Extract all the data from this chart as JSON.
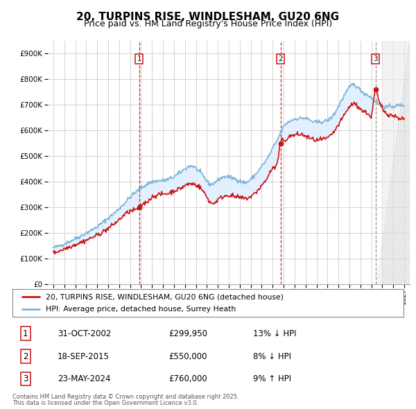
{
  "title": "20, TURPINS RISE, WINDLESHAM, GU20 6NG",
  "subtitle": "Price paid vs. HM Land Registry's House Price Index (HPI)",
  "title_fontsize": 11,
  "subtitle_fontsize": 9,
  "ylim": [
    0,
    950000
  ],
  "yticks": [
    0,
    100000,
    200000,
    300000,
    400000,
    500000,
    600000,
    700000,
    800000,
    900000
  ],
  "ytick_labels": [
    "£0",
    "£100K",
    "£200K",
    "£300K",
    "£400K",
    "£500K",
    "£600K",
    "£700K",
    "£800K",
    "£900K"
  ],
  "xlim_start": 1994.5,
  "xlim_end": 2027.5,
  "xticks": [
    1995,
    1996,
    1997,
    1998,
    1999,
    2000,
    2001,
    2002,
    2003,
    2004,
    2005,
    2006,
    2007,
    2008,
    2009,
    2010,
    2011,
    2012,
    2013,
    2014,
    2015,
    2016,
    2017,
    2018,
    2019,
    2020,
    2021,
    2022,
    2023,
    2024,
    2025,
    2026,
    2027
  ],
  "background_color": "#ffffff",
  "plot_bg_color": "#ffffff",
  "grid_color": "#cccccc",
  "hpi_color": "#7ab3d4",
  "price_color": "#cc1111",
  "sale1_date": 2002.83,
  "sale1_price": 299950,
  "sale2_date": 2015.72,
  "sale2_price": 550000,
  "sale3_date": 2024.39,
  "sale3_price": 760000,
  "future_start": 2025.1,
  "fill_color": "#ddeeff",
  "legend_line1": "20, TURPINS RISE, WINDLESHAM, GU20 6NG (detached house)",
  "legend_line2": "HPI: Average price, detached house, Surrey Heath",
  "footer1": "Contains HM Land Registry data © Crown copyright and database right 2025.",
  "footer2": "This data is licensed under the Open Government Licence v3.0.",
  "table_rows": [
    [
      "1",
      "31-OCT-2002",
      "£299,950",
      "13% ↓ HPI"
    ],
    [
      "2",
      "18-SEP-2015",
      "£550,000",
      "8% ↓ HPI"
    ],
    [
      "3",
      "23-MAY-2024",
      "£760,000",
      "9% ↑ HPI"
    ]
  ]
}
